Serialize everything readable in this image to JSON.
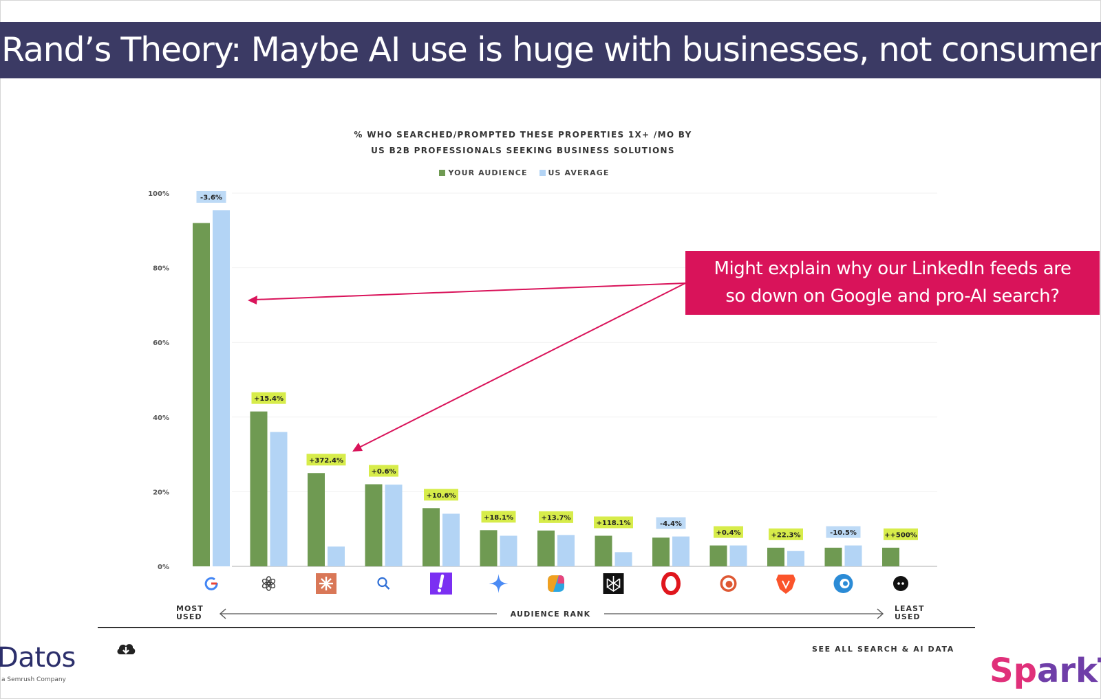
{
  "slide": {
    "title": "Rand’s Theory: Maybe AI use is huge with businesses, not consumers",
    "callout": [
      "Might explain why our LinkedIn feeds are",
      "so down on Google and pro-AI search?"
    ],
    "datos_logo": "Datos",
    "datos_sub": "a Semrush Company",
    "spark_logo": "SparkT",
    "see_all": "SEE ALL SEARCH & AI DATA",
    "most_used": [
      "MOST",
      "USED"
    ],
    "least_used": [
      "LEAST",
      "USED"
    ],
    "axis_caption": "AUDIENCE RANK"
  },
  "colors": {
    "title_bg": "#3b3a64",
    "callout_bg": "#d9135a",
    "your_audience": "#6f9a52",
    "us_average": "#b3d4f5",
    "positive_badge": "#d7ec4a",
    "negative_badge": "#bddaf6",
    "arrow": "#d9135a"
  },
  "chart_data": {
    "type": "bar",
    "title": [
      "% WHO SEARCHED/PROMPTED THESE PROPERTIES 1X+ /MO BY",
      "US B2B PROFESSIONALS SEEKING BUSINESS SOLUTIONS"
    ],
    "legend": [
      "YOUR AUDIENCE",
      "US AVERAGE"
    ],
    "legend_placement": "top-center",
    "ylim": [
      0,
      100
    ],
    "yticks": [
      0,
      20,
      40,
      60,
      80,
      100
    ],
    "ytick_labels": [
      "0%",
      "20%",
      "40%",
      "60%",
      "80%",
      "100%"
    ],
    "grid": true,
    "categories": [
      "google-icon",
      "openai-icon",
      "claude-icon",
      "bing-icon",
      "yahoo-icon",
      "gemini-icon",
      "copilot-icon",
      "perplexity-icon",
      "opera-icon",
      "duckduckgo-icon",
      "brave-icon",
      "ecosia-icon",
      "dark-circle-icon"
    ],
    "series": [
      {
        "name": "YOUR AUDIENCE",
        "values": [
          92,
          41.5,
          25,
          22,
          15.6,
          9.7,
          9.6,
          8.2,
          7.7,
          5.6,
          5,
          5,
          5
        ]
      },
      {
        "name": "US AVERAGE",
        "values": [
          95.4,
          36,
          5.3,
          21.9,
          14.1,
          8.2,
          8.4,
          3.8,
          8,
          5.6,
          4.1,
          5.6,
          0
        ]
      }
    ],
    "badges": [
      "-3.6%",
      "+15.4%",
      "+372.4%",
      "+0.6%",
      "+10.6%",
      "+18.1%",
      "+13.7%",
      "+118.1%",
      "-4.4%",
      "+0.4%",
      "+22.3%",
      "-10.5%",
      "++500%"
    ]
  }
}
